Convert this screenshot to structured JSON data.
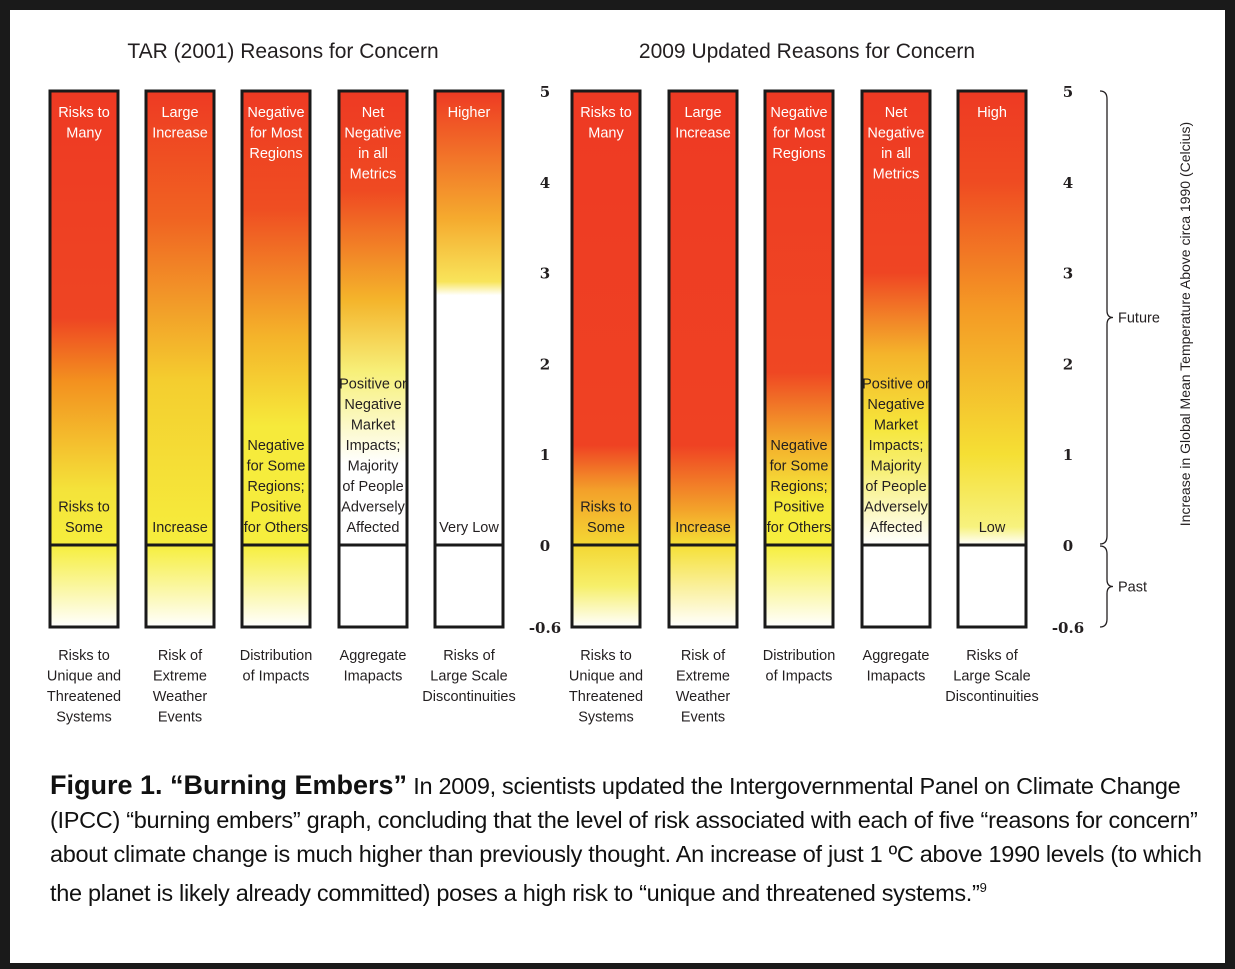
{
  "chart_data": [
    {
      "type": "heatmap",
      "title": "TAR (2001) Reasons for Concern",
      "ylabel": "Increase in Global Mean Temperature Above circa 1990 (Celcius)",
      "ylim": [
        -0.6,
        5
      ],
      "yticks": [
        "5",
        "4",
        "3",
        "2",
        "1",
        "0",
        "-0.6"
      ],
      "columns": [
        {
          "name": "Risks to Unique and Threatened Systems",
          "top_label": "Risks to Many",
          "bottom_label": "Risks to Some",
          "stops": [
            [
              5,
              "#ee3a23"
            ],
            [
              2.5,
              "#ee4523"
            ],
            [
              1.8,
              "#f3911f"
            ],
            [
              0.6,
              "#f4e33a"
            ],
            [
              0,
              "#f6ee3d"
            ],
            [
              -0.6,
              "#ffffff"
            ]
          ]
        },
        {
          "name": "Risk of Extreme Weather Events",
          "top_label": "Large Increase",
          "bottom_label": "Increase",
          "stops": [
            [
              5,
              "#ee3a23"
            ],
            [
              3.6,
              "#f06322"
            ],
            [
              1.8,
              "#f4ce2f"
            ],
            [
              0,
              "#f6ee3d"
            ],
            [
              -0.6,
              "#ffffff"
            ]
          ]
        },
        {
          "name": "Distribution of Impacts",
          "top_label": "Negative for Most Regions",
          "bottom_label": "Negative for Some Regions; Positive for Others",
          "stops": [
            [
              5,
              "#ee3a23"
            ],
            [
              3.7,
              "#ef4e22"
            ],
            [
              2.3,
              "#f4b32a"
            ],
            [
              1.3,
              "#f6ea3b"
            ],
            [
              0,
              "#f6ee3d"
            ],
            [
              -0.6,
              "#ffffff"
            ]
          ]
        },
        {
          "name": "Aggregate Imapacts",
          "top_label": "Net Negative in all Metrics",
          "bottom_label": "Positive or Negative Market Impacts; Majority of People Adversely Affected",
          "stops": [
            [
              5,
              "#ee3a23"
            ],
            [
              3.9,
              "#ef4a22"
            ],
            [
              2.7,
              "#f4b42b"
            ],
            [
              1.9,
              "#f7f07a"
            ],
            [
              0.9,
              "#ffffff"
            ],
            [
              -0.6,
              "#ffffff"
            ]
          ]
        },
        {
          "name": "Risks of Large Scale Discontinuities",
          "top_label": "Higher",
          "bottom_label": "Very Low",
          "stops": [
            [
              5,
              "#ee3a23"
            ],
            [
              3.6,
              "#f5aa2e"
            ],
            [
              2.9,
              "#f8e45a"
            ],
            [
              2.75,
              "#ffffff"
            ],
            [
              -0.6,
              "#ffffff"
            ]
          ]
        }
      ]
    },
    {
      "type": "heatmap",
      "title": "2009 Updated Reasons for Concern",
      "ylabel": "Increase in Global Mean Temperature Above circa 1990 (Celcius)",
      "ylim": [
        -0.6,
        5
      ],
      "yticks": [
        "5",
        "4",
        "3",
        "2",
        "1",
        "0",
        "-0.6"
      ],
      "columns": [
        {
          "name": "Risks to Unique and Threatened Systems",
          "top_label": "Risks to Many",
          "bottom_label": "Risks to Some",
          "stops": [
            [
              5,
              "#ee3a23"
            ],
            [
              1.1,
              "#ef4223"
            ],
            [
              0.6,
              "#f3a12a"
            ],
            [
              0,
              "#f4d733"
            ],
            [
              -0.3,
              "#f6ef6a"
            ],
            [
              -0.6,
              "#ffffff"
            ]
          ]
        },
        {
          "name": "Risk of Extreme Weather Events",
          "top_label": "Large Increase",
          "bottom_label": "Increase",
          "stops": [
            [
              5,
              "#ee3a23"
            ],
            [
              1.1,
              "#ef4223"
            ],
            [
              0.4,
              "#f3a12a"
            ],
            [
              0,
              "#f5e035"
            ],
            [
              -0.6,
              "#ffffff"
            ]
          ]
        },
        {
          "name": "Distribution of Impacts",
          "top_label": "Negative for Most Regions",
          "bottom_label": "Negative for Some Regions; Positive for Others",
          "stops": [
            [
              5,
              "#ee3a23"
            ],
            [
              1.9,
              "#ef4723"
            ],
            [
              1.1,
              "#f3b02c"
            ],
            [
              0.5,
              "#f6ea3b"
            ],
            [
              0,
              "#f6ee3d"
            ],
            [
              -0.6,
              "#ffffff"
            ]
          ]
        },
        {
          "name": "Aggregate Imapacts",
          "top_label": "Net Negative in all Metrics",
          "bottom_label": "Positive or Negative Market Impacts; Majority of People Adversely Affected",
          "stops": [
            [
              5,
              "#ee3a23"
            ],
            [
              3.0,
              "#ef4523"
            ],
            [
              2.1,
              "#f4b42b"
            ],
            [
              1.3,
              "#f6e63a"
            ],
            [
              0.8,
              "#f7f07a"
            ],
            [
              0,
              "#ffffff"
            ],
            [
              -0.6,
              "#ffffff"
            ]
          ]
        },
        {
          "name": "Risks of Large Scale Discontinuities",
          "top_label": "High",
          "bottom_label": "Low",
          "stops": [
            [
              5,
              "#ee3a23"
            ],
            [
              4.0,
              "#ef4b22"
            ],
            [
              2.6,
              "#f49a25"
            ],
            [
              1.0,
              "#f5df34"
            ],
            [
              0.2,
              "#f7f27e"
            ],
            [
              0,
              "#ffffff"
            ],
            [
              -0.6,
              "#ffffff"
            ]
          ]
        }
      ]
    }
  ],
  "brackets": {
    "future": "Future",
    "past": "Past"
  },
  "caption": {
    "lead": "Figure 1. “Burning Embers”",
    "text": " In 2009, scientists updated the Intergovernmental Panel on Climate Change (IPCC) “burning embers” graph, concluding that the level of risk associated with each of five “reasons for concern” about climate change is much higher than previously thought. An increase of just 1 ºC above 1990 levels (to which the planet is likely already committed) poses a high risk to “unique and threatened systems.”",
    "footnote": "9"
  }
}
